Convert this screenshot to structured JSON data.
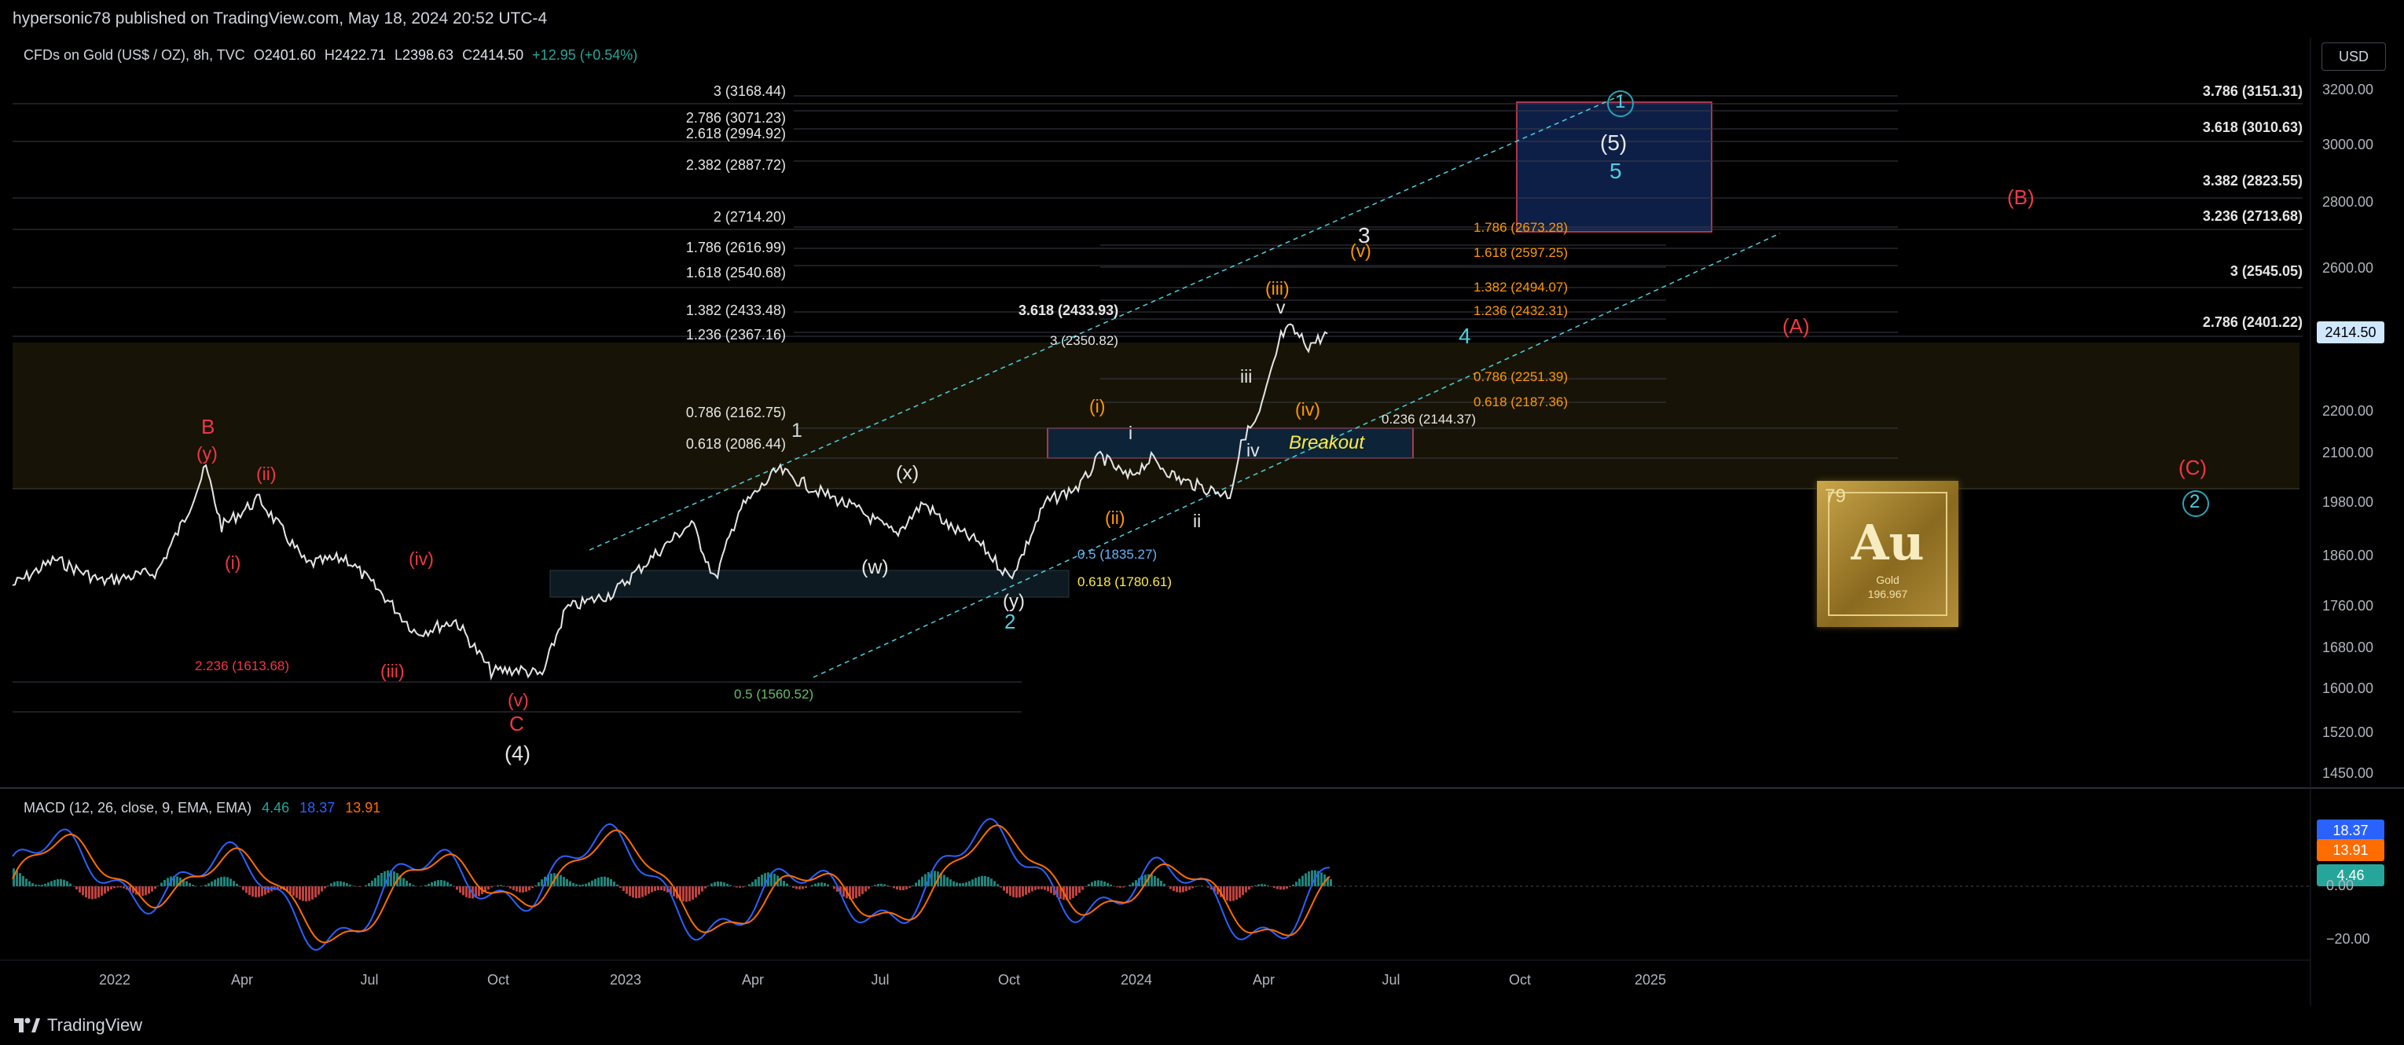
{
  "header": {
    "published": "hypersonic78 published on TradingView.com, May 18, 2024 20:52 UTC-4"
  },
  "symbol": {
    "name": "CFDs on Gold (US$ / OZ), 8h, TVC",
    "open_label": "O",
    "open": "2401.60",
    "high_label": "H",
    "high": "2422.71",
    "low_label": "L",
    "low": "2398.63",
    "close_label": "C",
    "close": "2414.50",
    "change": "+12.95 (+0.54%)"
  },
  "currency_button": "USD",
  "price_axis": {
    "ticks": [
      "3200.00",
      "3000.00",
      "2800.00",
      "2600.00",
      "2200.00",
      "2100.00",
      "1980.00",
      "1860.00",
      "1760.00",
      "1680.00",
      "1600.00",
      "1520.00",
      "1450.00"
    ],
    "current_price": "2414.50"
  },
  "time_axis": {
    "ticks": [
      "2022",
      "Apr",
      "Jul",
      "Oct",
      "2023",
      "Apr",
      "Jul",
      "Oct",
      "2024",
      "Apr",
      "Jul",
      "Oct",
      "2025"
    ]
  },
  "macd": {
    "title": "MACD (12, 26, close, 9, EMA, EMA)",
    "histogram": "4.46",
    "macd": "18.37",
    "signal": "13.91",
    "axis_ticks": [
      "0.00",
      "−20.00"
    ],
    "colors": {
      "macd": "#2962ff",
      "signal": "#ff6d00",
      "hist_pos": "#26a69a",
      "hist_neg": "#ef5350"
    }
  },
  "fib_left": [
    {
      "label": "3 (3168.44)"
    },
    {
      "label": "2.786 (3071.23)"
    },
    {
      "label": "2.618 (2994.92)"
    },
    {
      "label": "2.382 (2887.72)"
    },
    {
      "label": "2 (2714.20)"
    },
    {
      "label": "1.786 (2616.99)"
    },
    {
      "label": "1.618 (2540.68)"
    },
    {
      "label": "1.382 (2433.48)"
    },
    {
      "label": "1.236 (2367.16)"
    },
    {
      "label": "0.786 (2162.75)"
    },
    {
      "label": "0.618 (2086.44)"
    }
  ],
  "fib_right": [
    {
      "label": "3.786 (3151.31)"
    },
    {
      "label": "3.618 (3010.63)"
    },
    {
      "label": "3.382 (2823.55)"
    },
    {
      "label": "3.236 (2713.68)"
    },
    {
      "label": "3 (2545.05)"
    },
    {
      "label": "2.786 (2401.22)"
    }
  ],
  "fib_orange": [
    {
      "label": "1.786 (2673.28)"
    },
    {
      "label": "1.618 (2597.25)"
    },
    {
      "label": "1.382 (2494.07)"
    },
    {
      "label": "1.236 (2432.31)"
    },
    {
      "label": "0.786 (2251.39)"
    },
    {
      "label": "0.618 (2187.36)"
    }
  ],
  "fib_misc": {
    "f3618": "3.618 (2433.93)",
    "f3": "3 (2350.82)",
    "f0236": "0.236 (2144.37)",
    "f05b": "0.5 (1835.27)",
    "f0618y": "0.618 (1780.61)",
    "f05g": "0.5 (1560.52)",
    "f2236": "2.236 (1613.68)"
  },
  "waves": {
    "B": "B",
    "y1": "(y)",
    "ii1": "(ii)",
    "i1": "(i)",
    "iv1": "(iv)",
    "iii1": "(iii)",
    "v1": "(v)",
    "C": "C",
    "w4": "(4)",
    "one": "1",
    "x": "(x)",
    "w": "(w)",
    "y2": "(y)",
    "two": "2",
    "oi": "(i)",
    "oii": "(ii)",
    "ri": "i",
    "rii": "ii",
    "riii": "iii",
    "riv": "iv",
    "rv": "v",
    "oiii": "(iii)",
    "oiv": "(iv)",
    "three": "3",
    "ov": "(v)",
    "four": "4",
    "five_p": "(5)",
    "five": "5",
    "circ1": "1",
    "A_r": "(A)",
    "B_r": "(B)",
    "C_r": "(C)",
    "circ2": "2"
  },
  "breakout": "Breakout",
  "element": {
    "number": "79",
    "symbol": "Au",
    "name": "Gold",
    "mass": "196.967"
  },
  "brand": "TradingView",
  "colors": {
    "up": "#26a69a",
    "down": "#ef5350",
    "wave_red": "#f23645",
    "wave_orange": "#ff9800",
    "cyan": "#4dd0e1",
    "yellow": "#ffeb3b"
  }
}
